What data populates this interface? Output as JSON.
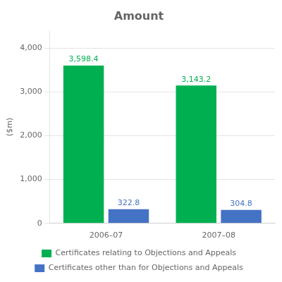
{
  "chart_data": {
    "type": "bar",
    "title": "Amount",
    "ylabel": "($m)",
    "categories": [
      "2006–07",
      "2007–08"
    ],
    "series": [
      {
        "name": "Certificates relating to Objections and Appeals",
        "color": "#00b050",
        "values": [
          3598.4,
          3143.2
        ],
        "value_labels": [
          "3,598.4",
          "3,143.2"
        ]
      },
      {
        "name": "Certificates other than for Objections and Appeals",
        "color": "#4472c4",
        "values": [
          322.8,
          304.8
        ],
        "value_labels": [
          "322.8",
          "304.8"
        ]
      }
    ],
    "ylim": [
      0,
      4400
    ],
    "yticks": [
      0,
      {
        "value": 1000,
        "label": "1,000"
      },
      {
        "value": 2000,
        "label": "2,000"
      },
      {
        "value": 3000,
        "label": "3,000"
      },
      {
        "value": 4000,
        "label": "4,000"
      }
    ],
    "grid": true,
    "legend": "bottom",
    "data_labels": true
  }
}
